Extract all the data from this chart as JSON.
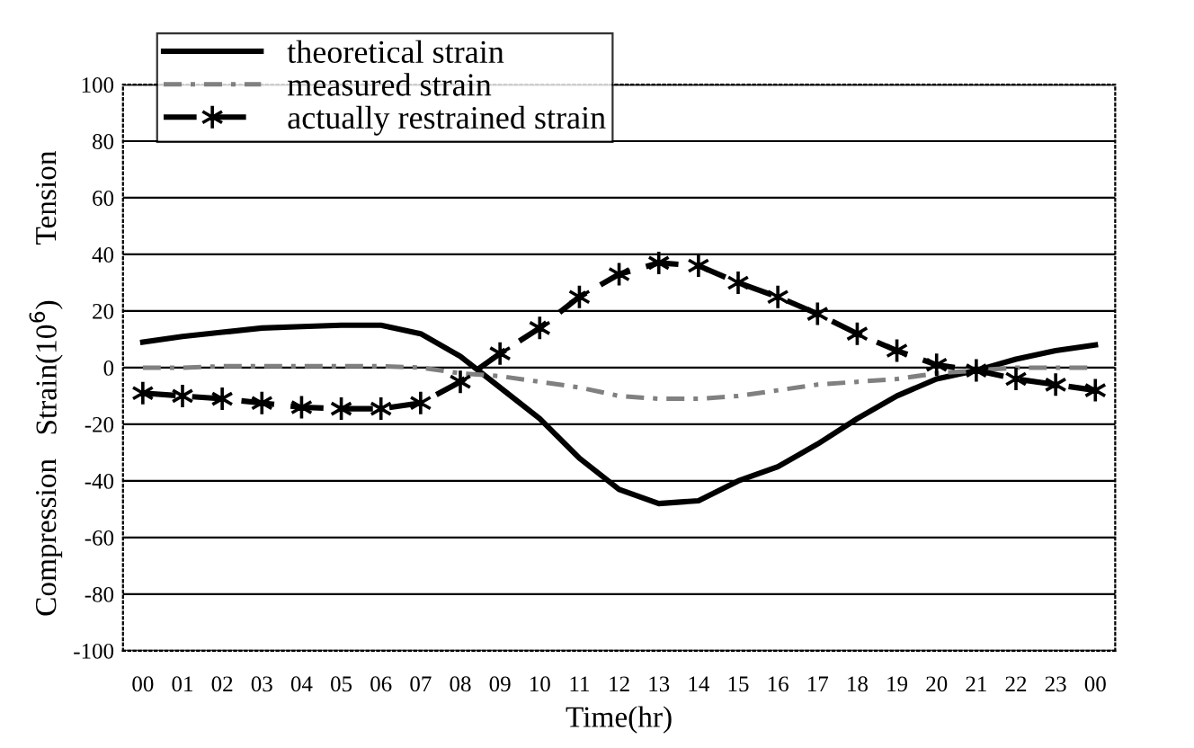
{
  "chart_data": {
    "type": "line",
    "xlabel": "Time(hr)",
    "ylabel": "Strain(10$^{6}$)",
    "categories": [
      "00",
      "01",
      "02",
      "03",
      "04",
      "05",
      "06",
      "07",
      "08",
      "09",
      "10",
      "11",
      "12",
      "13",
      "14",
      "15",
      "16",
      "17",
      "18",
      "19",
      "20",
      "21",
      "22",
      "23",
      "00"
    ],
    "series": [
      {
        "name": "theoretical strain",
        "color": "#000000",
        "line_style": "solid",
        "marker": "none",
        "values": [
          9,
          11,
          12.5,
          14,
          14.5,
          15,
          15,
          12,
          4,
          -7,
          -18,
          -32,
          -43,
          -48,
          -47,
          -40,
          -35,
          -27,
          -18,
          -10,
          -4,
          -1,
          3,
          6,
          8
        ]
      },
      {
        "name": "measured strain",
        "color": "#808080",
        "line_style": "dashdot",
        "marker": "none",
        "values": [
          0,
          0,
          0.5,
          0.5,
          0.5,
          0.5,
          0.5,
          0,
          -2,
          -3,
          -5,
          -7,
          -10,
          -11,
          -11,
          -10,
          -8,
          -6,
          -5,
          -4,
          -2,
          -1,
          0,
          0,
          0
        ]
      },
      {
        "name": "actually restrained strain",
        "color": "#000000",
        "line_style": "dashed",
        "marker": "cross",
        "values": [
          -9,
          -10,
          -11,
          -12.5,
          -14,
          -14.5,
          -14.5,
          -12.5,
          -5,
          5,
          14,
          25,
          33,
          37,
          36,
          30,
          25,
          19,
          12,
          6,
          1,
          -1,
          -4,
          -6,
          -8
        ]
      }
    ],
    "ylim": [
      -100,
      100
    ],
    "yticks": [
      -100,
      -80,
      -60,
      -40,
      -20,
      0,
      20,
      40,
      60,
      80,
      100
    ],
    "grid": "y",
    "legend": "top left",
    "annotations": [
      "Tension",
      "Compression"
    ]
  }
}
